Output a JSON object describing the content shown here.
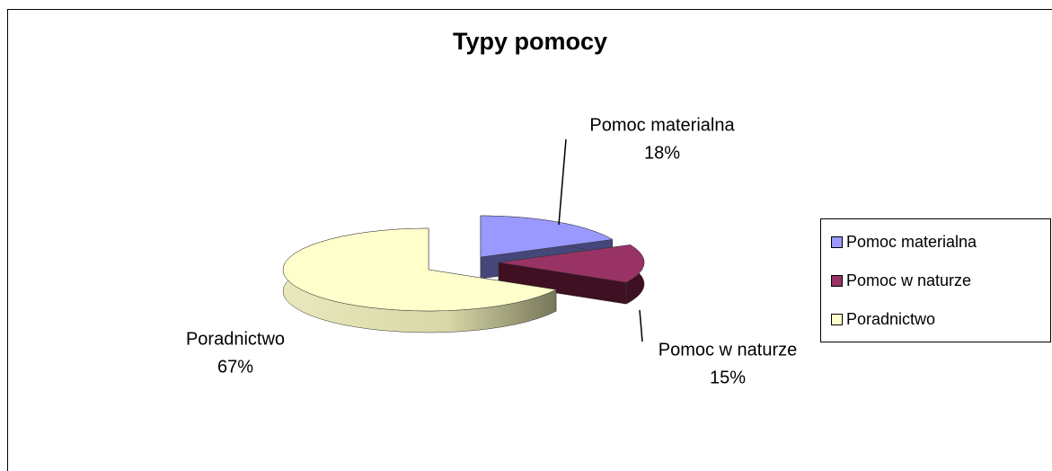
{
  "chart_data": {
    "type": "pie",
    "title": "Typy pomocy",
    "categories": [
      "Pomoc materialna",
      "Pomoc w naturze",
      "Poradnictwo"
    ],
    "values": [
      18,
      15,
      67
    ],
    "value_labels": [
      "18%",
      "15%",
      "67%"
    ],
    "colors": [
      "#9999ff",
      "#993366",
      "#ffffcc"
    ],
    "legend": "right"
  }
}
